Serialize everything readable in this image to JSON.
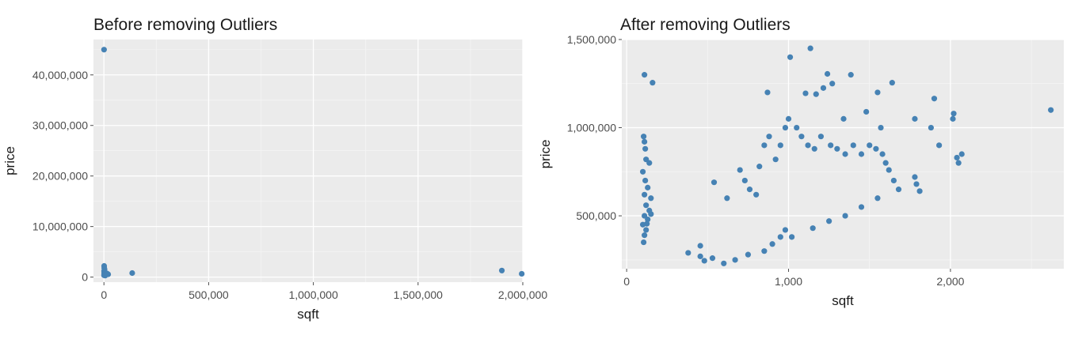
{
  "style": {
    "panel_background": "#ebebeb",
    "grid_major": "#ffffff",
    "point_color": "#4682b4",
    "tick_color": "#4d4d4d"
  },
  "chart_data": [
    {
      "type": "scatter",
      "title": "Before removing Outliers",
      "xlabel": "sqft",
      "ylabel": "price",
      "xlim": [
        -50000,
        2000000
      ],
      "ylim": [
        -1000000,
        47000000
      ],
      "xticks": [
        0,
        500000,
        1000000,
        1500000,
        2000000
      ],
      "xtick_labels": [
        "0",
        "500,000",
        "1,000,000",
        "1,500,000",
        "2,000,000"
      ],
      "yticks": [
        0,
        10000000,
        20000000,
        30000000,
        40000000
      ],
      "ytick_labels": [
        "0",
        "10,000,000",
        "20,000,000",
        "30,000,000",
        "40,000,000"
      ],
      "grid": true,
      "points": [
        [
          500,
          45000000
        ],
        [
          1000,
          2200000
        ],
        [
          1500,
          1800000
        ],
        [
          3000,
          1500000
        ],
        [
          800,
          1200000
        ],
        [
          2000,
          1000000
        ],
        [
          5000,
          900000
        ],
        [
          1200,
          800000
        ],
        [
          4000,
          700000
        ],
        [
          10000,
          600000
        ],
        [
          15000,
          700000
        ],
        [
          900,
          500000
        ],
        [
          2500,
          400000
        ],
        [
          6000,
          300000
        ],
        [
          20000,
          550000
        ],
        [
          700,
          350000
        ],
        [
          135000,
          800000
        ],
        [
          1900000,
          1300000
        ],
        [
          1995000,
          650000
        ]
      ]
    },
    {
      "type": "scatter",
      "title": "After removing Outliers",
      "xlabel": "sqft",
      "ylabel": "price",
      "xlim": [
        -30,
        2700
      ],
      "ylim": [
        200000,
        1500000
      ],
      "xticks": [
        0,
        1000,
        2000
      ],
      "xtick_labels": [
        "0",
        "1,000",
        "2,000"
      ],
      "yticks": [
        500000,
        1000000,
        1500000
      ],
      "ytick_labels": [
        "500,000",
        "1,000,000",
        "1,500,000"
      ],
      "grid": true,
      "points": [
        [
          110,
          1300000
        ],
        [
          160,
          1255000
        ],
        [
          105,
          950000
        ],
        [
          110,
          920000
        ],
        [
          115,
          880000
        ],
        [
          120,
          820000
        ],
        [
          140,
          800000
        ],
        [
          100,
          750000
        ],
        [
          115,
          700000
        ],
        [
          130,
          660000
        ],
        [
          110,
          620000
        ],
        [
          150,
          600000
        ],
        [
          120,
          560000
        ],
        [
          140,
          530000
        ],
        [
          110,
          500000
        ],
        [
          130,
          480000
        ],
        [
          100,
          450000
        ],
        [
          120,
          420000
        ],
        [
          110,
          390000
        ],
        [
          105,
          350000
        ],
        [
          150,
          510000
        ],
        [
          125,
          455000
        ],
        [
          380,
          290000
        ],
        [
          870,
          1200000
        ],
        [
          1010,
          1400000
        ],
        [
          1135,
          1450000
        ],
        [
          1105,
          1195000
        ],
        [
          1170,
          1190000
        ],
        [
          1215,
          1225000
        ],
        [
          1240,
          1305000
        ],
        [
          1270,
          1250000
        ],
        [
          1385,
          1300000
        ],
        [
          1550,
          1200000
        ],
        [
          1640,
          1255000
        ],
        [
          1780,
          1050000
        ],
        [
          1900,
          1165000
        ],
        [
          2020,
          1080000
        ],
        [
          2015,
          1050000
        ],
        [
          2620,
          1100000
        ],
        [
          1880,
          1000000
        ],
        [
          1930,
          900000
        ],
        [
          2070,
          850000
        ],
        [
          2040,
          830000
        ],
        [
          2050,
          800000
        ],
        [
          1790,
          680000
        ],
        [
          1780,
          720000
        ],
        [
          1810,
          640000
        ],
        [
          1340,
          1050000
        ],
        [
          1480,
          1090000
        ],
        [
          1570,
          1000000
        ],
        [
          455,
          330000
        ],
        [
          455,
          270000
        ],
        [
          480,
          245000
        ],
        [
          530,
          260000
        ],
        [
          600,
          230000
        ],
        [
          670,
          250000
        ],
        [
          750,
          280000
        ],
        [
          850,
          300000
        ],
        [
          900,
          340000
        ],
        [
          950,
          380000
        ],
        [
          540,
          690000
        ],
        [
          620,
          600000
        ],
        [
          700,
          760000
        ],
        [
          730,
          700000
        ],
        [
          760,
          650000
        ],
        [
          800,
          620000
        ],
        [
          820,
          780000
        ],
        [
          850,
          900000
        ],
        [
          880,
          950000
        ],
        [
          920,
          820000
        ],
        [
          950,
          900000
        ],
        [
          980,
          1000000
        ],
        [
          1000,
          1050000
        ],
        [
          1050,
          1000000
        ],
        [
          1080,
          950000
        ],
        [
          1120,
          900000
        ],
        [
          1160,
          880000
        ],
        [
          1200,
          950000
        ],
        [
          1260,
          900000
        ],
        [
          1300,
          880000
        ],
        [
          1350,
          850000
        ],
        [
          1400,
          900000
        ],
        [
          1450,
          850000
        ],
        [
          1500,
          900000
        ],
        [
          1540,
          880000
        ],
        [
          1580,
          850000
        ],
        [
          1600,
          800000
        ],
        [
          1620,
          760000
        ],
        [
          1650,
          700000
        ],
        [
          1680,
          650000
        ],
        [
          1150,
          430000
        ],
        [
          1250,
          470000
        ],
        [
          1350,
          500000
        ],
        [
          1450,
          550000
        ],
        [
          1550,
          600000
        ],
        [
          1020,
          380000
        ],
        [
          980,
          420000
        ]
      ]
    }
  ]
}
